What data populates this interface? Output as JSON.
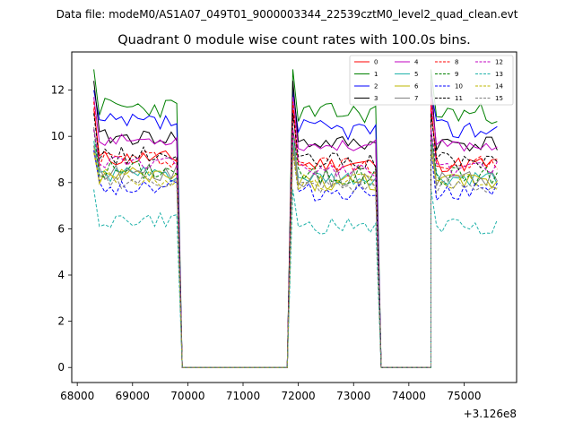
{
  "figure": {
    "suptitle": "Data file: modeM0/AS1A07_049T01_9000003344_22539cztM0_level2_quad_clean.evt"
  },
  "chart_data": {
    "type": "line",
    "title": "Quadrant 0 module wise count rates with 100.0s bins.",
    "xlabel": "",
    "ylabel": "",
    "x_offset_label": "+3.126e8",
    "xlim": [
      67900,
      75950
    ],
    "ylim": [
      -0.65,
      13.65
    ],
    "x_ticks": [
      68000,
      69000,
      70000,
      71000,
      72000,
      73000,
      74000,
      75000
    ],
    "x_tick_labels": [
      "68000",
      "69000",
      "70000",
      "71000",
      "72000",
      "73000",
      "74000",
      "75000"
    ],
    "y_ticks": [
      0,
      2,
      4,
      6,
      8,
      10,
      12
    ],
    "y_tick_labels": [
      "0",
      "2",
      "4",
      "6",
      "8",
      "10",
      "12"
    ],
    "segments": [
      {
        "start": 68300,
        "end": 69800,
        "trailing_zero": 69900
      },
      {
        "start": 71900,
        "end": 73400,
        "trailing_zero": 73500
      },
      {
        "start": 74400,
        "end": 75600,
        "trailing_zero": null
      }
    ],
    "gaps": [
      {
        "start": 69900,
        "end": 71800
      },
      {
        "start": 73500,
        "end": 74400
      }
    ],
    "gap_value": 0,
    "legend": {
      "location": "upper right",
      "columns": 4
    },
    "series": [
      {
        "name": "0",
        "color": "#ff0000",
        "dash": "solid",
        "level": 8.8,
        "head": 11.2,
        "amp": 0.35,
        "seed": 11
      },
      {
        "name": "1",
        "color": "#008000",
        "dash": "solid",
        "level": 11.0,
        "head": 12.9,
        "amp": 0.45,
        "seed": 23
      },
      {
        "name": "2",
        "color": "#0000ff",
        "dash": "solid",
        "level": 10.3,
        "head": 12.0,
        "amp": 0.45,
        "seed": 37
      },
      {
        "name": "3",
        "color": "#000000",
        "dash": "solid",
        "level": 9.7,
        "head": 12.4,
        "amp": 0.35,
        "seed": 41
      },
      {
        "name": "4",
        "color": "#c000c0",
        "dash": "solid",
        "level": 9.6,
        "head": 11.7,
        "amp": 0.25,
        "seed": 53
      },
      {
        "name": "5",
        "color": "#20b2aa",
        "dash": "solid",
        "level": 8.1,
        "head": 9.8,
        "amp": 0.35,
        "seed": 61
      },
      {
        "name": "6",
        "color": "#bdb700",
        "dash": "solid",
        "level": 8.0,
        "head": 9.6,
        "amp": 0.4,
        "seed": 73
      },
      {
        "name": "7",
        "color": "#808080",
        "dash": "solid",
        "level": 8.2,
        "head": 10.4,
        "amp": 0.4,
        "seed": 89
      },
      {
        "name": "8",
        "color": "#ff0000",
        "dash": "dashed",
        "level": 8.8,
        "head": 11.5,
        "amp": 0.4,
        "seed": 97
      },
      {
        "name": "9",
        "color": "#008000",
        "dash": "dashed",
        "level": 8.3,
        "head": 10.3,
        "amp": 0.45,
        "seed": 101
      },
      {
        "name": "10",
        "color": "#0000ff",
        "dash": "dashed",
        "level": 7.6,
        "head": 9.4,
        "amp": 0.4,
        "seed": 113
      },
      {
        "name": "11",
        "color": "#000000",
        "dash": "dashed",
        "level": 8.9,
        "head": 11.0,
        "amp": 0.4,
        "seed": 127
      },
      {
        "name": "12",
        "color": "#c000c0",
        "dash": "dashed",
        "level": 8.6,
        "head": 10.3,
        "amp": 0.35,
        "seed": 131
      },
      {
        "name": "13",
        "color": "#20b2aa",
        "dash": "dashed",
        "level": 6.1,
        "head": 7.7,
        "amp": 0.35,
        "seed": 149
      },
      {
        "name": "14",
        "color": "#bdb700",
        "dash": "dashed",
        "level": 8.0,
        "head": 9.3,
        "amp": 0.4,
        "seed": 151
      },
      {
        "name": "15",
        "color": "#808080",
        "dash": "dashed",
        "level": 7.8,
        "head": 9.6,
        "amp": 0.35,
        "seed": 163
      }
    ]
  }
}
